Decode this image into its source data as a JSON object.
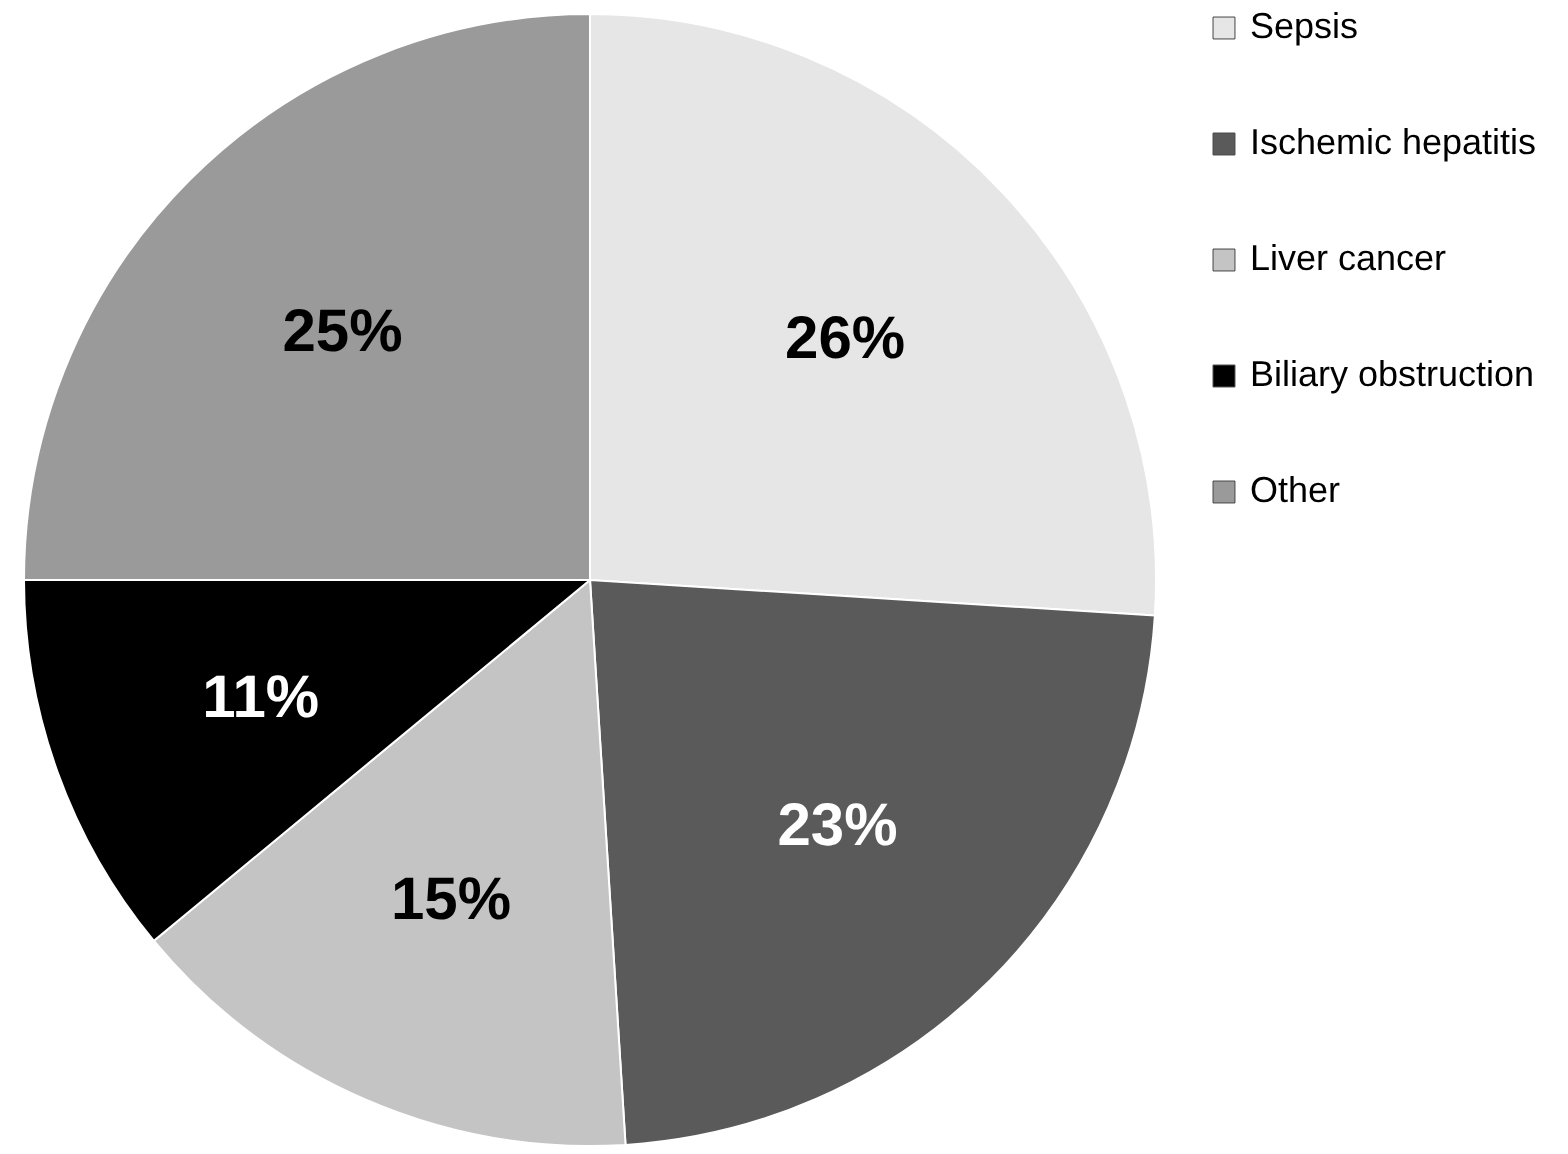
{
  "chart_data": {
    "type": "pie",
    "categories": [
      "Sepsis",
      "Ischemic hepatitis",
      "Liver cancer",
      "Biliary obstruction",
      "Other"
    ],
    "values": [
      26,
      23,
      15,
      11,
      25
    ],
    "colors": [
      "#e6e6e6",
      "#5a5a5a",
      "#c4c4c4",
      "#000000",
      "#9a9a9a"
    ],
    "value_labels": [
      "26%",
      "23%",
      "15%",
      "11%",
      "25%"
    ],
    "legend": "right"
  }
}
